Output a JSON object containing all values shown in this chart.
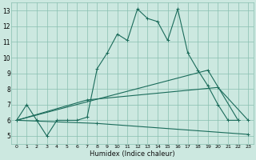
{
  "xlabel": "Humidex (Indice chaleur)",
  "xlim": [
    -0.5,
    23.5
  ],
  "ylim": [
    4.5,
    13.5
  ],
  "xticks": [
    0,
    1,
    2,
    3,
    4,
    5,
    6,
    7,
    8,
    9,
    10,
    11,
    12,
    13,
    14,
    15,
    16,
    17,
    18,
    19,
    20,
    21,
    22,
    23
  ],
  "yticks": [
    5,
    6,
    7,
    8,
    9,
    10,
    11,
    12,
    13
  ],
  "bg_color": "#cce8e0",
  "grid_color": "#88bfb0",
  "line_color": "#1a6b5a",
  "series": [
    [
      6.0,
      7.0,
      6.0,
      5.0,
      6.0,
      6.0,
      6.0,
      6.2,
      9.3,
      10.3,
      11.5,
      11.1,
      13.1,
      12.5,
      12.3,
      11.1,
      13.1,
      10.3,
      9.2,
      8.2,
      7.0,
      6.0,
      6.0,
      null
    ],
    [
      6.0,
      6.0,
      null,
      null,
      null,
      null,
      null,
      null,
      null,
      null,
      null,
      null,
      null,
      null,
      null,
      null,
      null,
      null,
      null,
      9.2,
      null,
      null,
      6.0,
      null
    ],
    [
      6.0,
      null,
      null,
      null,
      null,
      null,
      null,
      7.3,
      null,
      null,
      null,
      null,
      null,
      null,
      null,
      null,
      null,
      null,
      null,
      null,
      8.1,
      null,
      null,
      6.0
    ],
    [
      6.0,
      null,
      null,
      null,
      null,
      null,
      null,
      null,
      5.8,
      5.8,
      5.8,
      5.8,
      5.8,
      5.8,
      5.8,
      5.8,
      5.8,
      5.8,
      5.8,
      5.8,
      5.8,
      5.8,
      5.8,
      5.1
    ]
  ],
  "line_series": [
    {
      "x": [
        0,
        19
      ],
      "y": [
        6.0,
        9.2
      ]
    },
    {
      "x": [
        0,
        7,
        20
      ],
      "y": [
        6.0,
        7.3,
        8.1
      ]
    },
    {
      "x": [
        0,
        8,
        23
      ],
      "y": [
        6.0,
        5.8,
        5.1
      ]
    }
  ]
}
